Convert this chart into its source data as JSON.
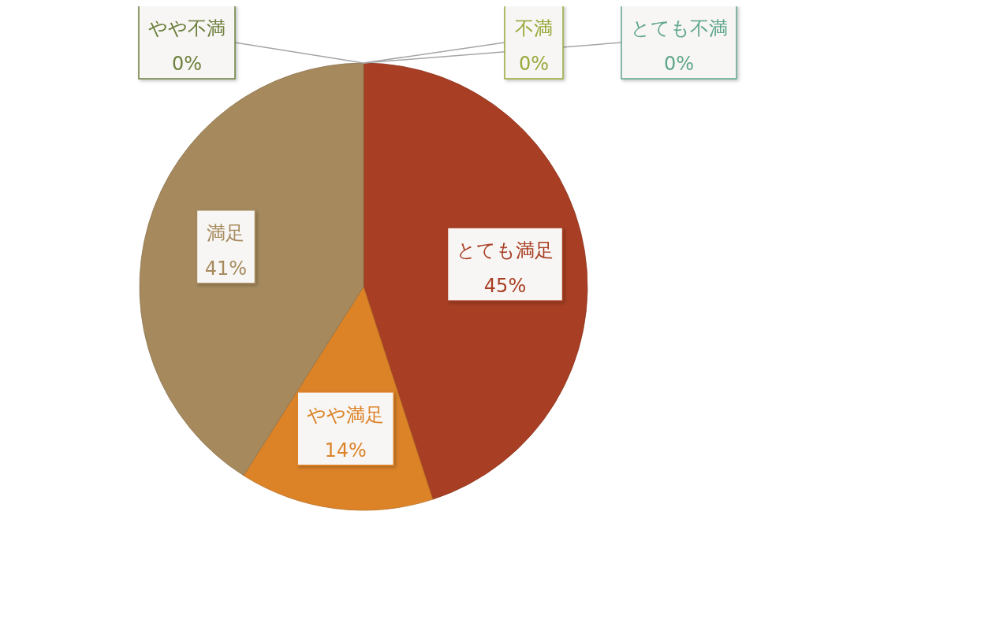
{
  "chart_data": {
    "type": "pie",
    "categories": [
      "とても満足",
      "やや満足",
      "満足",
      "やや不満",
      "不満",
      "とても不満"
    ],
    "values": [
      45,
      14,
      41,
      0,
      0,
      0
    ],
    "colors": [
      "#a83f24",
      "#dc8328",
      "#a68a5e",
      "#6b7f3c",
      "#98a93a",
      "#5ea68a"
    ],
    "value_labels": [
      "45%",
      "14%",
      "41%",
      "0%",
      "0%",
      "0%"
    ],
    "legend": false
  }
}
